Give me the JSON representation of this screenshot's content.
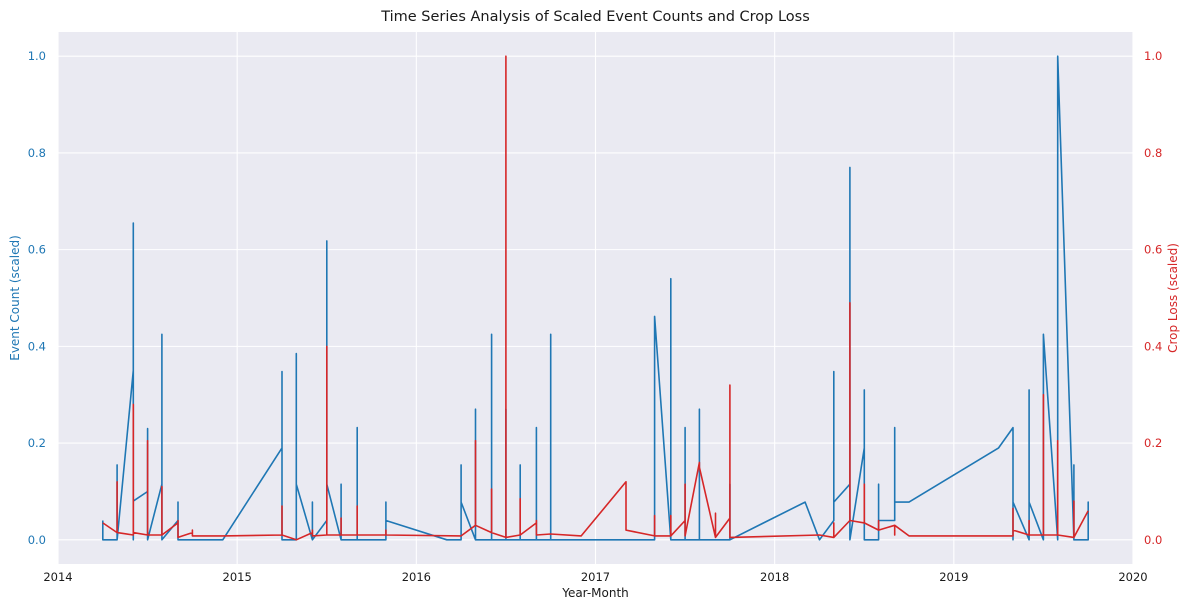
{
  "chart_data": {
    "type": "line",
    "title": "Time Series Analysis of Scaled Event Counts and Crop Loss",
    "xlabel": "Year-Month",
    "ylabel_left": "Event Count (scaled)",
    "ylabel_right": "Crop Loss (scaled)",
    "xlim": [
      2014.0,
      2020.0
    ],
    "ylim_left": [
      -0.05,
      1.05
    ],
    "ylim_right": [
      -0.05,
      1.05
    ],
    "x_ticks": [
      "2014",
      "2015",
      "2016",
      "2017",
      "2018",
      "2019",
      "2020"
    ],
    "y_ticks_left": [
      "0.0",
      "0.2",
      "0.4",
      "0.6",
      "0.8",
      "1.0"
    ],
    "y_ticks_right": [
      "0.0",
      "0.2",
      "0.4",
      "0.6",
      "0.8",
      "1.0"
    ],
    "grid": true,
    "background": "#eaeaf2",
    "series": [
      {
        "axis": "left",
        "color": "#1f77b4",
        "x": [
          2014.25,
          2014.25,
          2014.33,
          2014.33,
          2014.33,
          2014.42,
          2014.42,
          2014.42,
          2014.42,
          2014.5,
          2014.5,
          2014.5,
          2014.58,
          2014.58,
          2014.58,
          2014.58,
          2014.58,
          2014.67,
          2014.67,
          2014.67,
          2014.75,
          2014.92,
          2015.25,
          2015.25,
          2015.25,
          2015.33,
          2015.33,
          2015.33,
          2015.42,
          2015.42,
          2015.42,
          2015.5,
          2015.5,
          2015.5,
          2015.58,
          2015.58,
          2015.58,
          2015.67,
          2015.67,
          2015.67,
          2015.83,
          2015.83,
          2015.83,
          2016.17,
          2016.25,
          2016.25,
          2016.25,
          2016.33,
          2016.33,
          2016.33,
          2016.42,
          2016.42,
          2016.42,
          2016.5,
          2016.5,
          2016.5,
          2016.58,
          2016.58,
          2016.58,
          2016.67,
          2016.67,
          2016.67,
          2016.75,
          2016.75,
          2016.75,
          2017.17,
          2017.33,
          2017.33,
          2017.33,
          2017.42,
          2017.42,
          2017.42,
          2017.5,
          2017.5,
          2017.5,
          2017.58,
          2017.58,
          2017.58,
          2017.67,
          2017.67,
          2017.75,
          2017.75,
          2017.75,
          2018.17,
          2018.25,
          2018.33,
          2018.33,
          2018.33,
          2018.42,
          2018.42,
          2018.42,
          2018.5,
          2018.5,
          2018.5,
          2018.58,
          2018.58,
          2018.58,
          2018.67,
          2018.67,
          2018.67,
          2018.75,
          2019.25,
          2019.33,
          2019.33,
          2019.33,
          2019.42,
          2019.42,
          2019.42,
          2019.5,
          2019.5,
          2019.5,
          2019.58,
          2019.58,
          2019.58,
          2019.67,
          2019.67,
          2019.67,
          2019.75,
          2019.75,
          2019.75
        ],
        "y": [
          0.04,
          0.0,
          0.0,
          0.155,
          0.0,
          0.35,
          0.655,
          0.0,
          0.08,
          0.1,
          0.23,
          0.0,
          0.115,
          0.425,
          0.0,
          0.04,
          0.0,
          0.04,
          0.078,
          0.0,
          0.0,
          0.0,
          0.19,
          0.348,
          0.0,
          0.0,
          0.385,
          0.115,
          0.0,
          0.078,
          0.0,
          0.04,
          0.618,
          0.115,
          0.0,
          0.115,
          0.0,
          0.0,
          0.232,
          0.0,
          0.0,
          0.078,
          0.04,
          0.0,
          0.0,
          0.155,
          0.078,
          0.0,
          0.27,
          0.0,
          0.0,
          0.425,
          0.0,
          0.0,
          0.27,
          0.0,
          0.0,
          0.155,
          0.0,
          0.0,
          0.232,
          0.0,
          0.0,
          0.425,
          0.0,
          0.0,
          0.0,
          0.078,
          0.462,
          0.0,
          0.54,
          0.0,
          0.0,
          0.232,
          0.0,
          0.0,
          0.27,
          0.0,
          0.0,
          0.0,
          0.0,
          0.115,
          0.0,
          0.078,
          0.0,
          0.04,
          0.348,
          0.078,
          0.115,
          0.77,
          0.0,
          0.19,
          0.31,
          0.0,
          0.0,
          0.115,
          0.04,
          0.04,
          0.232,
          0.078,
          0.078,
          0.19,
          0.232,
          0.0,
          0.078,
          0.0,
          0.31,
          0.078,
          0.0,
          0.04,
          0.425,
          0.0,
          0.115,
          1.0,
          0.0,
          0.155,
          0.0,
          0.0,
          0.078,
          0.0
        ]
      },
      {
        "axis": "right",
        "color": "#d62728",
        "x": [
          2014.25,
          2014.33,
          2014.33,
          2014.33,
          2014.42,
          2014.42,
          2014.42,
          2014.5,
          2014.5,
          2014.5,
          2014.58,
          2014.58,
          2014.58,
          2014.67,
          2014.67,
          2014.67,
          2014.75,
          2014.75,
          2014.75,
          2014.92,
          2015.25,
          2015.25,
          2015.25,
          2015.33,
          2015.42,
          2015.42,
          2015.42,
          2015.5,
          2015.5,
          2015.5,
          2015.58,
          2015.58,
          2015.58,
          2015.67,
          2015.67,
          2015.67,
          2015.83,
          2015.83,
          2015.83,
          2016.25,
          2016.33,
          2016.33,
          2016.33,
          2016.42,
          2016.42,
          2016.42,
          2016.5,
          2016.5,
          2016.5,
          2016.58,
          2016.58,
          2016.58,
          2016.67,
          2016.67,
          2016.67,
          2016.75,
          2016.92,
          2017.17,
          2017.17,
          2017.17,
          2017.33,
          2017.33,
          2017.33,
          2017.42,
          2017.42,
          2017.42,
          2017.5,
          2017.5,
          2017.5,
          2017.58,
          2017.58,
          2017.67,
          2017.67,
          2017.67,
          2017.75,
          2017.75,
          2017.75,
          2018.25,
          2018.33,
          2018.33,
          2018.33,
          2018.42,
          2018.42,
          2018.42,
          2018.5,
          2018.5,
          2018.5,
          2018.58,
          2018.58,
          2018.58,
          2018.67,
          2018.67,
          2018.67,
          2018.75,
          2019.33,
          2019.33,
          2019.33,
          2019.42,
          2019.42,
          2019.42,
          2019.5,
          2019.5,
          2019.5,
          2019.58,
          2019.58,
          2019.58,
          2019.67,
          2019.67,
          2019.67,
          2019.75,
          2019.75
        ],
        "y": [
          0.035,
          0.015,
          0.12,
          0.015,
          0.01,
          0.28,
          0.015,
          0.01,
          0.205,
          0.01,
          0.01,
          0.11,
          0.01,
          0.035,
          0.04,
          0.005,
          0.015,
          0.02,
          0.008,
          0.008,
          0.01,
          0.07,
          0.01,
          0.0,
          0.015,
          0.02,
          0.008,
          0.01,
          0.4,
          0.01,
          0.01,
          0.045,
          0.01,
          0.01,
          0.07,
          0.01,
          0.01,
          0.02,
          0.01,
          0.008,
          0.03,
          0.205,
          0.03,
          0.015,
          0.105,
          0.015,
          0.005,
          1.0,
          0.005,
          0.01,
          0.085,
          0.01,
          0.035,
          0.04,
          0.01,
          0.012,
          0.008,
          0.12,
          0.12,
          0.02,
          0.008,
          0.05,
          0.008,
          0.008,
          0.05,
          0.008,
          0.04,
          0.115,
          0.008,
          0.16,
          0.15,
          0.005,
          0.055,
          0.005,
          0.045,
          0.32,
          0.005,
          0.01,
          0.005,
          0.035,
          0.005,
          0.04,
          0.49,
          0.04,
          0.035,
          0.115,
          0.035,
          0.02,
          0.04,
          0.02,
          0.03,
          0.01,
          0.03,
          0.008,
          0.008,
          0.065,
          0.02,
          0.01,
          0.04,
          0.01,
          0.01,
          0.3,
          0.01,
          0.01,
          0.205,
          0.01,
          0.005,
          0.08,
          0.005,
          0.06,
          0.06
        ]
      }
    ]
  }
}
